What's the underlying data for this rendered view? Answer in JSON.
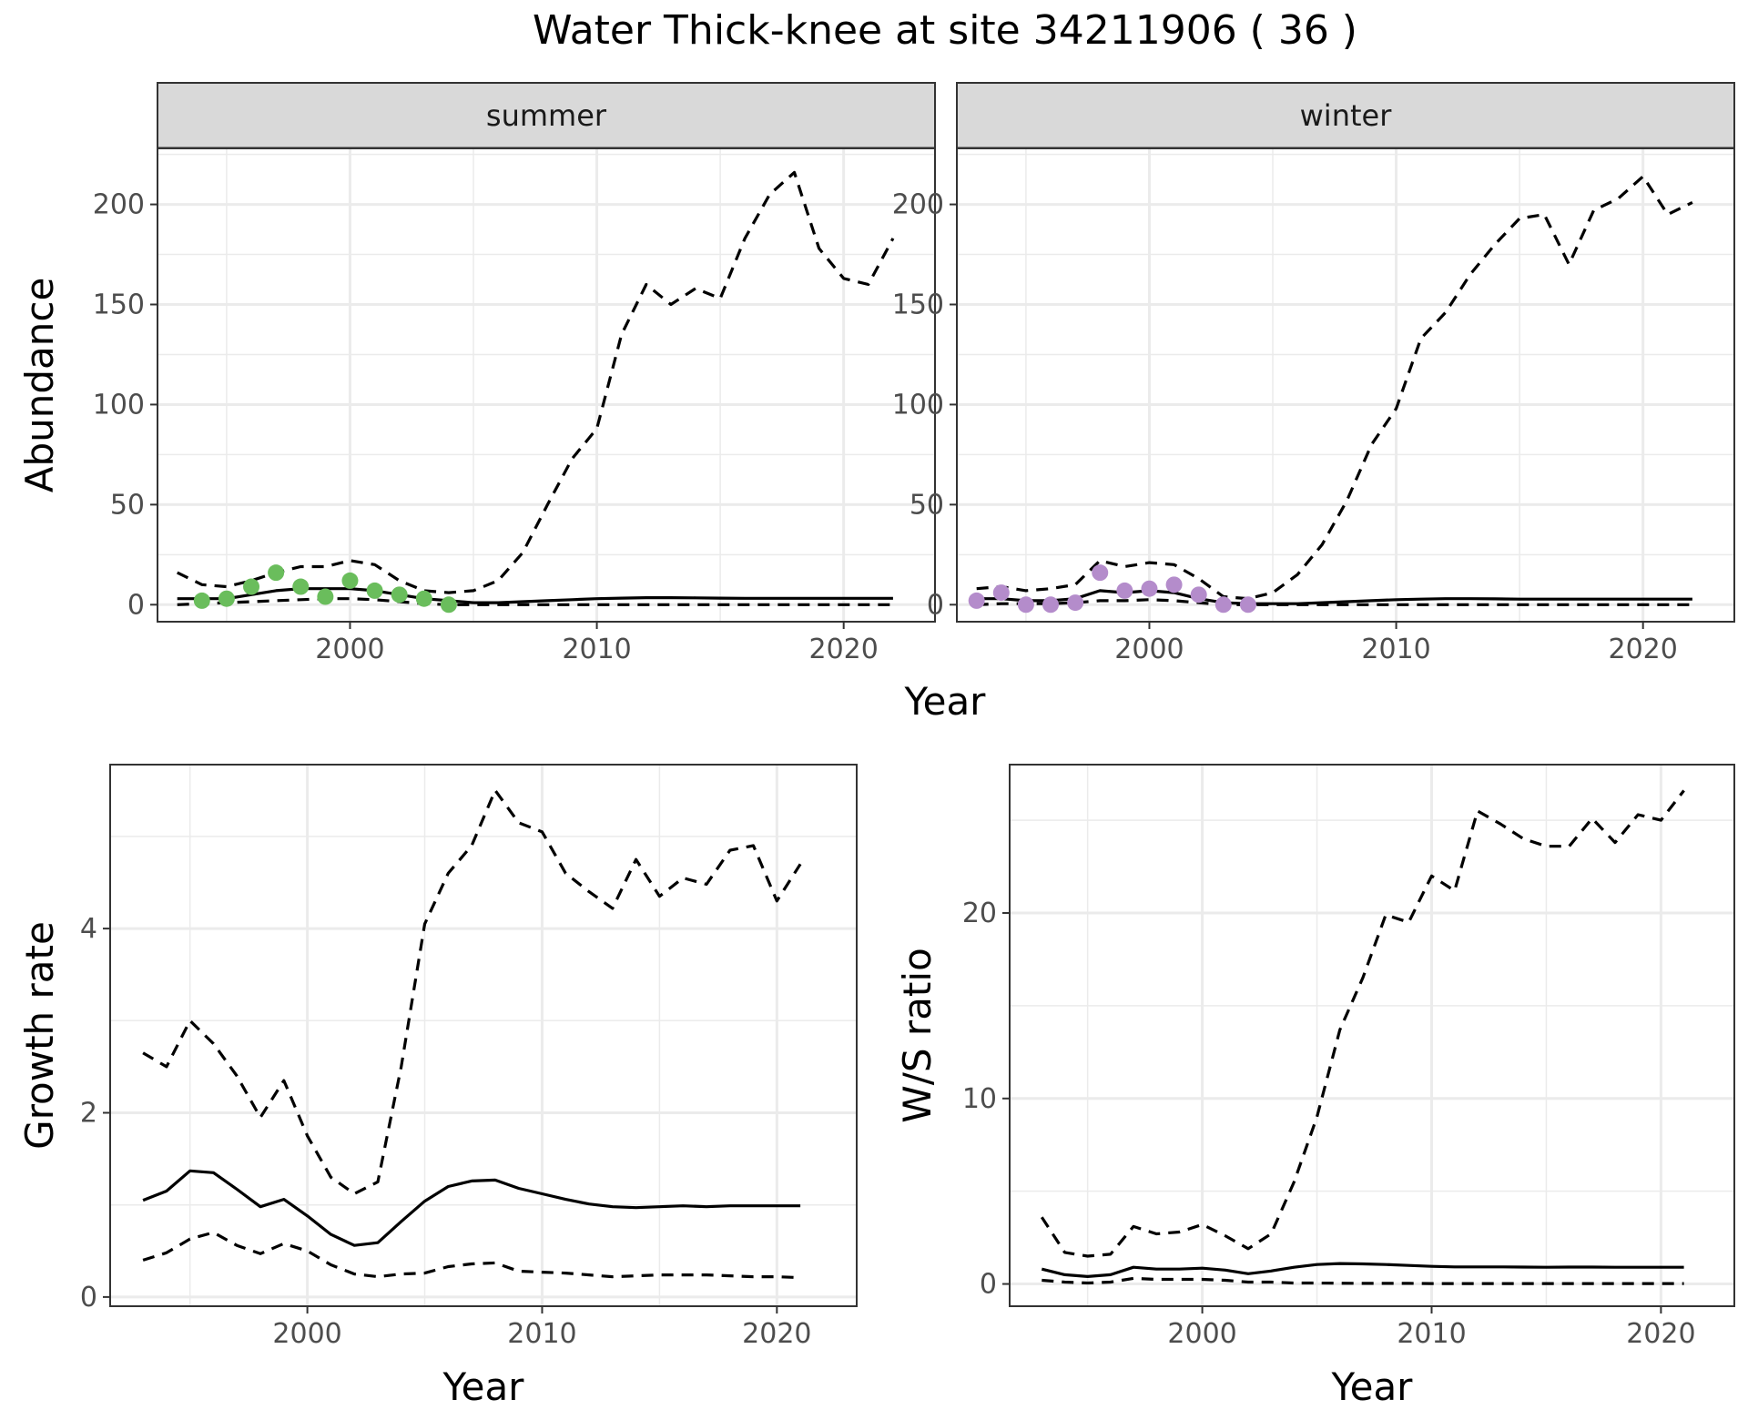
{
  "figure": {
    "title": "Water Thick-knee at site 34211906 ( 36 )",
    "colors": {
      "summer_points": "#6ABD5C",
      "winter_points": "#B48CCB",
      "line": "#000000",
      "grid": "#ebebeb",
      "strip": "#d9d9d9"
    }
  },
  "chart_data": [
    {
      "id": "summer",
      "type": "line",
      "strip_label": "summer",
      "xlabel": "",
      "ylabel": "Abundance",
      "xlim": [
        1992.2,
        2023.7
      ],
      "ylim": [
        -8.5,
        228
      ],
      "x_ticks": [
        2000,
        2010,
        2020
      ],
      "y_ticks": [
        0,
        50,
        100,
        150,
        200
      ],
      "grid": true,
      "series": [
        {
          "style": "dashed",
          "x": [
            1993,
            1994,
            1995,
            1996,
            1997,
            1998,
            1999,
            2000,
            2001,
            2002,
            2003,
            2004,
            2005,
            2006,
            2007,
            2008,
            2009,
            2010,
            2011,
            2012,
            2013,
            2014,
            2015,
            2016,
            2017,
            2018,
            2019,
            2020,
            2021,
            2022
          ],
          "y": [
            16,
            10,
            9,
            12,
            16,
            19,
            19,
            22,
            20,
            12,
            7,
            6,
            7,
            12,
            26,
            50,
            73,
            88,
            135,
            160,
            150,
            158,
            153,
            183,
            205,
            216,
            178,
            163,
            160,
            183
          ]
        },
        {
          "style": "solid",
          "x": [
            1993,
            1994,
            1995,
            1996,
            1997,
            1998,
            1999,
            2000,
            2001,
            2002,
            2003,
            2004,
            2005,
            2006,
            2007,
            2008,
            2009,
            2010,
            2011,
            2012,
            2013,
            2014,
            2015,
            2016,
            2017,
            2018,
            2019,
            2020,
            2021,
            2022
          ],
          "y": [
            3,
            3,
            3,
            5,
            7,
            8,
            8,
            8,
            7,
            5,
            3,
            2,
            1,
            1,
            1.5,
            2,
            2.5,
            3,
            3.3,
            3.5,
            3.5,
            3.4,
            3.3,
            3.2,
            3.2,
            3.2,
            3.2,
            3.2,
            3.2,
            3.2
          ]
        },
        {
          "style": "dashed",
          "x": [
            1993,
            1994,
            1995,
            1996,
            1997,
            1998,
            1999,
            2000,
            2001,
            2002,
            2003,
            2004,
            2005,
            2006,
            2007,
            2008,
            2009,
            2010,
            2011,
            2012,
            2013,
            2014,
            2015,
            2016,
            2017,
            2018,
            2019,
            2020,
            2021,
            2022
          ],
          "y": [
            0,
            0.5,
            1,
            1.5,
            2,
            2.5,
            3,
            3,
            2.5,
            1.5,
            0.5,
            0,
            0,
            0,
            0,
            0,
            0,
            0,
            0,
            0,
            0,
            0,
            0,
            0,
            0,
            0,
            0,
            0,
            0,
            0
          ]
        }
      ],
      "points": {
        "color": "#6ABD5C",
        "x": [
          1994,
          1995,
          1996,
          1997,
          1998,
          1999,
          2000,
          2001,
          2002,
          2003,
          2004
        ],
        "y": [
          2,
          3,
          9,
          16,
          9,
          4,
          12,
          7,
          5,
          3,
          0
        ]
      }
    },
    {
      "id": "winter",
      "type": "line",
      "strip_label": "winter",
      "xlabel": "",
      "ylabel": "",
      "xlim": [
        1992.2,
        2023.7
      ],
      "ylim": [
        -8.5,
        228
      ],
      "x_ticks": [
        2000,
        2010,
        2020
      ],
      "y_ticks": [
        0,
        50,
        100,
        150,
        200
      ],
      "grid": true,
      "series": [
        {
          "style": "dashed",
          "x": [
            1993,
            1994,
            1995,
            1996,
            1997,
            1998,
            1999,
            2000,
            2001,
            2002,
            2003,
            2004,
            2005,
            2006,
            2007,
            2008,
            2009,
            2010,
            2011,
            2012,
            2013,
            2014,
            2015,
            2016,
            2017,
            2018,
            2019,
            2020,
            2021,
            2022
          ],
          "y": [
            8,
            9,
            7,
            8,
            10,
            22,
            19,
            21,
            20,
            13,
            4,
            3,
            6,
            15,
            30,
            52,
            80,
            98,
            133,
            146,
            165,
            180,
            193,
            195,
            170,
            197,
            203,
            214,
            195,
            201
          ]
        },
        {
          "style": "solid",
          "x": [
            1993,
            1994,
            1995,
            1996,
            1997,
            1998,
            1999,
            2000,
            2001,
            2002,
            2003,
            2004,
            2005,
            2006,
            2007,
            2008,
            2009,
            2010,
            2011,
            2012,
            2013,
            2014,
            2015,
            2016,
            2017,
            2018,
            2019,
            2020,
            2021,
            2022
          ],
          "y": [
            3,
            3,
            2,
            2,
            3,
            7,
            6,
            7,
            6,
            3,
            1,
            0.5,
            0.5,
            0.5,
            1,
            1.5,
            2,
            2.5,
            2.8,
            3,
            3,
            2.9,
            2.8,
            2.8,
            2.8,
            2.8,
            2.8,
            2.8,
            2.8,
            2.8
          ]
        },
        {
          "style": "dashed",
          "x": [
            1993,
            1994,
            1995,
            1996,
            1997,
            1998,
            1999,
            2000,
            2001,
            2002,
            2003,
            2004,
            2005,
            2006,
            2007,
            2008,
            2009,
            2010,
            2011,
            2012,
            2013,
            2014,
            2015,
            2016,
            2017,
            2018,
            2019,
            2020,
            2021,
            2022
          ],
          "y": [
            0,
            0.5,
            0.5,
            0.5,
            1,
            2,
            2,
            2.5,
            2,
            1,
            0,
            0,
            0,
            0,
            0,
            0,
            0,
            0,
            0,
            0,
            0,
            0,
            0,
            0,
            0,
            0,
            0,
            0,
            0,
            0
          ]
        }
      ],
      "points": {
        "color": "#B48CCB",
        "x": [
          1993,
          1994,
          1995,
          1996,
          1997,
          1998,
          1999,
          2000,
          2001,
          2002,
          2003,
          2004
        ],
        "y": [
          2,
          6,
          0,
          0,
          1,
          16,
          7,
          8,
          10,
          5,
          0,
          0
        ]
      }
    },
    {
      "id": "growth",
      "type": "line",
      "xlabel": "Year",
      "ylabel": "Growth rate",
      "xlim": [
        1991.6,
        2023.4
      ],
      "ylim": [
        -0.1,
        5.78
      ],
      "x_ticks": [
        2000,
        2010,
        2020
      ],
      "y_ticks": [
        0,
        2,
        4
      ],
      "grid": true,
      "series": [
        {
          "style": "dashed",
          "x": [
            1993,
            1994,
            1995,
            1996,
            1997,
            1998,
            1999,
            2000,
            2001,
            2002,
            2003,
            2004,
            2005,
            2006,
            2007,
            2008,
            2009,
            2010,
            2011,
            2012,
            2013,
            2014,
            2015,
            2016,
            2017,
            2018,
            2019,
            2020,
            2021
          ],
          "y": [
            2.65,
            2.5,
            3.0,
            2.75,
            2.4,
            1.95,
            2.35,
            1.75,
            1.3,
            1.12,
            1.25,
            2.5,
            4.05,
            4.6,
            4.9,
            5.5,
            5.15,
            5.05,
            4.6,
            4.4,
            4.22,
            4.75,
            4.35,
            4.55,
            4.48,
            4.85,
            4.9,
            4.3,
            4.7
          ]
        },
        {
          "style": "solid",
          "x": [
            1993,
            1994,
            1995,
            1996,
            1997,
            1998,
            1999,
            2000,
            2001,
            2002,
            2003,
            2004,
            2005,
            2006,
            2007,
            2008,
            2009,
            2010,
            2011,
            2012,
            2013,
            2014,
            2015,
            2016,
            2017,
            2018,
            2019,
            2020,
            2021
          ],
          "y": [
            1.05,
            1.15,
            1.37,
            1.35,
            1.17,
            0.98,
            1.06,
            0.88,
            0.68,
            0.56,
            0.59,
            0.82,
            1.04,
            1.2,
            1.26,
            1.27,
            1.18,
            1.12,
            1.06,
            1.01,
            0.98,
            0.97,
            0.98,
            0.99,
            0.98,
            0.99,
            0.99,
            0.99,
            0.99
          ]
        },
        {
          "style": "dashed",
          "x": [
            1993,
            1994,
            1995,
            1996,
            1997,
            1998,
            1999,
            2000,
            2001,
            2002,
            2003,
            2004,
            2005,
            2006,
            2007,
            2008,
            2009,
            2010,
            2011,
            2012,
            2013,
            2014,
            2015,
            2016,
            2017,
            2018,
            2019,
            2020,
            2021
          ],
          "y": [
            0.4,
            0.48,
            0.63,
            0.7,
            0.56,
            0.47,
            0.58,
            0.5,
            0.35,
            0.25,
            0.22,
            0.25,
            0.26,
            0.33,
            0.36,
            0.37,
            0.28,
            0.27,
            0.26,
            0.24,
            0.22,
            0.23,
            0.24,
            0.24,
            0.24,
            0.23,
            0.22,
            0.22,
            0.21
          ]
        }
      ]
    },
    {
      "id": "ratio",
      "type": "line",
      "xlabel": "Year",
      "ylabel": "W/S ratio",
      "xlim": [
        1991.6,
        2023.2
      ],
      "ylim": [
        -1.2,
        28.0
      ],
      "x_ticks": [
        2000,
        2010,
        2020
      ],
      "y_ticks": [
        0,
        10,
        20
      ],
      "grid": true,
      "series": [
        {
          "style": "dashed",
          "x": [
            1993,
            1994,
            1995,
            1996,
            1997,
            1998,
            1999,
            2000,
            2001,
            2002,
            2003,
            2004,
            2005,
            2006,
            2007,
            2008,
            2009,
            2010,
            2011,
            2012,
            2013,
            2014,
            2015,
            2016,
            2017,
            2018,
            2019,
            2020,
            2021
          ],
          "y": [
            3.6,
            1.7,
            1.5,
            1.6,
            3.1,
            2.7,
            2.8,
            3.2,
            2.6,
            1.9,
            2.7,
            5.5,
            9.0,
            13.7,
            16.5,
            19.9,
            19.5,
            22.0,
            21.2,
            25.5,
            24.8,
            24.0,
            23.6,
            23.6,
            25.1,
            23.8,
            25.3,
            25.0,
            26.6
          ]
        },
        {
          "style": "solid",
          "x": [
            1993,
            1994,
            1995,
            1996,
            1997,
            1998,
            1999,
            2000,
            2001,
            2002,
            2003,
            2004,
            2005,
            2006,
            2007,
            2008,
            2009,
            2010,
            2011,
            2012,
            2013,
            2014,
            2015,
            2016,
            2017,
            2018,
            2019,
            2020,
            2021
          ],
          "y": [
            0.8,
            0.5,
            0.4,
            0.5,
            0.9,
            0.8,
            0.8,
            0.85,
            0.75,
            0.55,
            0.7,
            0.9,
            1.05,
            1.1,
            1.08,
            1.05,
            1.0,
            0.95,
            0.92,
            0.92,
            0.92,
            0.91,
            0.9,
            0.91,
            0.91,
            0.9,
            0.9,
            0.9,
            0.9
          ]
        },
        {
          "style": "dashed",
          "x": [
            1993,
            1994,
            1995,
            1996,
            1997,
            1998,
            1999,
            2000,
            2001,
            2002,
            2003,
            2004,
            2005,
            2006,
            2007,
            2008,
            2009,
            2010,
            2011,
            2012,
            2013,
            2014,
            2015,
            2016,
            2017,
            2018,
            2019,
            2020,
            2021
          ],
          "y": [
            0.2,
            0.1,
            0.05,
            0.1,
            0.3,
            0.25,
            0.25,
            0.25,
            0.2,
            0.1,
            0.1,
            0.05,
            0.05,
            0.04,
            0.03,
            0.03,
            0.03,
            0.02,
            0.02,
            0.02,
            0.02,
            0.02,
            0.02,
            0.02,
            0.02,
            0.02,
            0.02,
            0.02,
            0.02
          ]
        }
      ]
    }
  ],
  "shared": {
    "top_xlabel": "Year"
  }
}
